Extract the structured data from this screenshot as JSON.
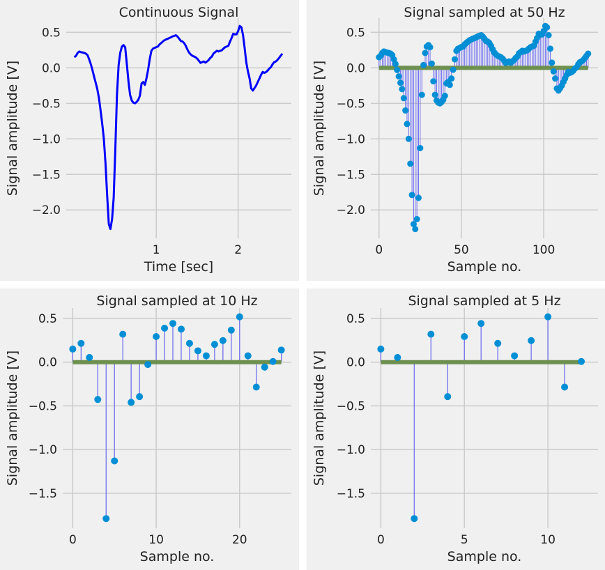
{
  "chart_data": [
    {
      "type": "line",
      "title": "Continuous Signal",
      "xlabel": "Time [sec]",
      "ylabel": "Signal amplitude [V]",
      "xlim": [
        -0.1,
        2.65
      ],
      "ylim": [
        -2.4,
        0.7
      ],
      "xticks": [
        1,
        2
      ],
      "xtick_labels": [
        "1",
        "2"
      ],
      "yticks": [
        0.5,
        0.0,
        -0.5,
        -1.0,
        -1.5,
        -2.0
      ],
      "ytick_labels": [
        "0.5",
        "0.0",
        "−0.5",
        "−1.0",
        "−1.5",
        "−2.0"
      ],
      "grid": true,
      "line_color": "#0000ff",
      "dt": 0.02,
      "series": [
        {
          "name": "signal",
          "source": "samples_50hz"
        }
      ]
    },
    {
      "type": "stem",
      "title": "Signal sampled at 50 Hz",
      "xlabel": "Sample no.",
      "ylabel": "Signal amplitude [V]",
      "xlim": [
        -5,
        133
      ],
      "ylim": [
        -2.4,
        0.7
      ],
      "xticks": [
        0,
        50,
        100
      ],
      "xtick_labels": [
        "0",
        "50",
        "100"
      ],
      "yticks": [
        0.5,
        0.0,
        -0.5,
        -1.0,
        -1.5,
        -2.0
      ],
      "ytick_labels": [
        "0.5",
        "0.0",
        "−0.5",
        "−1.0",
        "−1.5",
        "−2.0"
      ],
      "grid": true,
      "values": [
        0.15,
        0.17,
        0.21,
        0.23,
        0.22,
        0.215,
        0.21,
        0.2,
        0.18,
        0.12,
        0.054,
        -0.03,
        -0.12,
        -0.21,
        -0.3,
        -0.427,
        -0.6,
        -0.79,
        -1.0,
        -1.35,
        -1.79,
        -2.2,
        -2.27,
        -2.13,
        -1.83,
        -1.13,
        -0.38,
        0.04,
        0.21,
        0.3,
        0.32,
        0.29,
        0.06,
        -0.19,
        -0.38,
        -0.46,
        -0.49,
        -0.5,
        -0.48,
        -0.45,
        -0.394,
        -0.22,
        -0.2,
        -0.24,
        -0.15,
        -0.027,
        0.12,
        0.24,
        0.27,
        0.28,
        0.293,
        0.3,
        0.33,
        0.35,
        0.37,
        0.389,
        0.4,
        0.41,
        0.42,
        0.43,
        0.443,
        0.45,
        0.46,
        0.44,
        0.41,
        0.378,
        0.37,
        0.35,
        0.31,
        0.26,
        0.215,
        0.19,
        0.17,
        0.16,
        0.15,
        0.13,
        0.1,
        0.07,
        0.08,
        0.09,
        0.073,
        0.09,
        0.11,
        0.14,
        0.16,
        0.204,
        0.22,
        0.24,
        0.23,
        0.24,
        0.247,
        0.27,
        0.29,
        0.3,
        0.31,
        0.367,
        0.42,
        0.48,
        0.47,
        0.47,
        0.519,
        0.59,
        0.57,
        0.46,
        0.27,
        0.073,
        -0.05,
        -0.15,
        -0.29,
        -0.32,
        -0.285,
        -0.25,
        -0.2,
        -0.15,
        -0.1,
        -0.057,
        -0.07,
        -0.06,
        -0.04,
        -0.01,
        0.008,
        0.05,
        0.08,
        0.09,
        0.11,
        0.139,
        0.17,
        0.2
      ]
    },
    {
      "type": "stem",
      "title": "Signal sampled at 10 Hz",
      "xlabel": "Sample no.",
      "ylabel": "Signal amplitude [V]",
      "xlim": [
        -1.2,
        26.2
      ],
      "ylim": [
        -1.9,
        0.62
      ],
      "xticks": [
        0,
        10,
        20
      ],
      "xtick_labels": [
        "0",
        "10",
        "20"
      ],
      "yticks": [
        0.5,
        0.0,
        -0.5,
        -1.0,
        -1.5
      ],
      "ytick_labels": [
        "0.5",
        "0.0",
        "−0.5",
        "−1.0",
        "−1.5"
      ],
      "grid": true,
      "values": [
        0.15,
        0.215,
        0.054,
        -0.427,
        -1.79,
        -1.13,
        0.32,
        -0.46,
        -0.394,
        -0.027,
        0.293,
        0.389,
        0.443,
        0.378,
        0.215,
        0.13,
        0.073,
        0.204,
        0.247,
        0.367,
        0.519,
        0.073,
        -0.285,
        -0.057,
        0.008,
        0.139
      ]
    },
    {
      "type": "stem",
      "title": "Signal sampled at 5 Hz",
      "xlabel": "Sample no.",
      "ylabel": "Signal amplitude [V]",
      "xlim": [
        -0.6,
        13.0
      ],
      "ylim": [
        -1.9,
        0.62
      ],
      "xticks": [
        0,
        5,
        10
      ],
      "xtick_labels": [
        "0",
        "5",
        "10"
      ],
      "yticks": [
        0.5,
        0.0,
        -0.5,
        -1.0,
        -1.5
      ],
      "ytick_labels": [
        "0.5",
        "0.0",
        "−0.5",
        "−1.0",
        "−1.5"
      ],
      "grid": true,
      "values": [
        0.15,
        0.054,
        -1.79,
        0.32,
        -0.394,
        0.293,
        0.443,
        0.215,
        0.073,
        0.247,
        0.519,
        -0.285,
        0.008
      ]
    }
  ],
  "colors": {
    "line": "#0000ff",
    "stem": "#7070f0",
    "marker": "#008fd5",
    "baseline": "#6d904f",
    "grid": "#cbcbcb",
    "panel_bg": "#f0f0f0"
  }
}
